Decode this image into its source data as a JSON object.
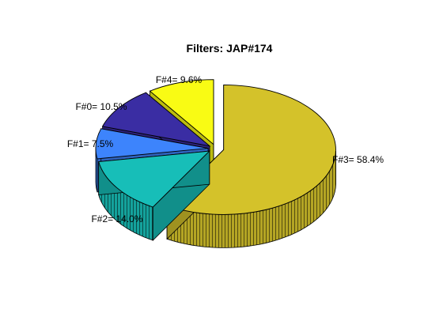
{
  "chart_data": {
    "type": "pie",
    "title": "Filters:  JAP#174",
    "three_d": true,
    "exploded": true,
    "slices": [
      {
        "name": "F#0",
        "value": 10.5,
        "label": "F#0= 10.5%",
        "color": "#3a2da3"
      },
      {
        "name": "F#1",
        "value": 7.5,
        "label": "F#1= 7.5%",
        "color": "#3d84fc"
      },
      {
        "name": "F#2",
        "value": 14.0,
        "label": "F#2= 14.0%",
        "color": "#17beb8"
      },
      {
        "name": "F#3",
        "value": 58.4,
        "label": "F#3= 58.4%",
        "color": "#d4c22a"
      },
      {
        "name": "F#4",
        "value": 9.6,
        "label": "F#4= 9.6%",
        "color": "#f9fb14"
      }
    ]
  }
}
